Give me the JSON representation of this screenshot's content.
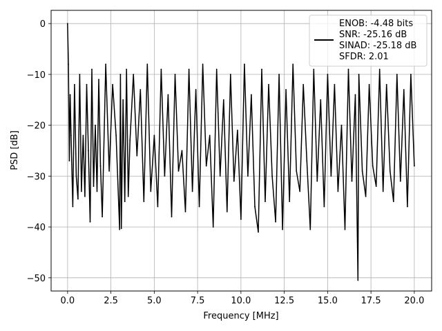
{
  "chart_data": {
    "type": "line",
    "title": "",
    "xlabel": "Frequency [MHz]",
    "ylabel": "PSD [dB]",
    "xlim": [
      -0.95,
      21.0
    ],
    "ylim": [
      -52.6,
      2.6
    ],
    "xticks": [
      0.0,
      2.5,
      5.0,
      7.5,
      10.0,
      12.5,
      15.0,
      17.5,
      20.0
    ],
    "xtick_labels": [
      "0.0",
      "2.5",
      "5.0",
      "7.5",
      "10.0",
      "12.5",
      "15.0",
      "17.5",
      "20.0"
    ],
    "yticks": [
      0,
      -10,
      -20,
      -30,
      -40,
      -50
    ],
    "ytick_labels": [
      "0",
      "−10",
      "−20",
      "−30",
      "−40",
      "−50"
    ],
    "grid": true,
    "legend_position": "upper-right",
    "line_color": "#000000",
    "series": [
      {
        "name": "ENOB: -4.48 bits\nSNR: -25.16 dB\nSINAD: -25.18 dB\nSFDR: 2.01",
        "x": [
          0.0,
          0.05,
          0.1,
          0.15,
          0.2,
          0.3,
          0.4,
          0.5,
          0.6,
          0.7,
          0.8,
          0.9,
          1.0,
          1.1,
          1.2,
          1.3,
          1.4,
          1.5,
          1.6,
          1.7,
          1.8,
          1.9,
          2.0,
          2.2,
          2.4,
          2.6,
          2.8,
          3.0,
          3.05,
          3.1,
          3.2,
          3.3,
          3.4,
          3.5,
          3.6,
          3.8,
          4.0,
          4.2,
          4.4,
          4.6,
          4.8,
          5.0,
          5.2,
          5.4,
          5.6,
          5.8,
          6.0,
          6.2,
          6.4,
          6.6,
          6.8,
          7.0,
          7.2,
          7.4,
          7.6,
          7.8,
          8.0,
          8.2,
          8.4,
          8.6,
          8.8,
          9.0,
          9.2,
          9.4,
          9.6,
          9.8,
          10.0,
          10.2,
          10.4,
          10.6,
          10.8,
          11.0,
          11.2,
          11.4,
          11.6,
          11.8,
          12.0,
          12.2,
          12.4,
          12.6,
          12.8,
          13.0,
          13.2,
          13.4,
          13.6,
          13.8,
          14.0,
          14.2,
          14.4,
          14.6,
          14.8,
          15.0,
          15.2,
          15.4,
          15.6,
          15.8,
          16.0,
          16.2,
          16.4,
          16.6,
          16.75,
          16.8,
          17.0,
          17.2,
          17.4,
          17.6,
          17.8,
          18.0,
          18.2,
          18.4,
          18.6,
          18.8,
          19.0,
          19.2,
          19.4,
          19.6,
          19.8,
          20.0
        ],
        "y": [
          0.0,
          -8.0,
          -27.0,
          -14.0,
          -22.0,
          -36.0,
          -12.0,
          -30.0,
          -34.5,
          -10.0,
          -33.0,
          -22.0,
          -34.0,
          -12.0,
          -25.0,
          -39.0,
          -9.0,
          -32.0,
          -20.0,
          -33.0,
          -11.0,
          -28.0,
          -38.0,
          -8.0,
          -29.0,
          -12.0,
          -22.0,
          -40.5,
          -10.0,
          -40.3,
          -15.0,
          -35.0,
          -9.0,
          -34.0,
          -23.0,
          -10.0,
          -26.0,
          -13.0,
          -35.0,
          -8.0,
          -33.0,
          -22.0,
          -36.0,
          -9.0,
          -30.0,
          -14.0,
          -38.0,
          -10.0,
          -29.0,
          -25.0,
          -37.0,
          -9.0,
          -33.0,
          -13.0,
          -36.0,
          -8.0,
          -28.0,
          -22.0,
          -40.0,
          -9.0,
          -30.0,
          -15.0,
          -37.0,
          -10.0,
          -31.0,
          -21.0,
          -38.5,
          -8.0,
          -30.0,
          -14.0,
          -36.0,
          -41.0,
          -9.0,
          -35.0,
          -12.0,
          -30.0,
          -39.0,
          -10.0,
          -40.5,
          -13.0,
          -35.0,
          -8.0,
          -29.0,
          -33.0,
          -12.0,
          -27.0,
          -40.5,
          -9.0,
          -31.0,
          -15.0,
          -36.0,
          -10.0,
          -30.0,
          -12.0,
          -33.0,
          -20.0,
          -40.5,
          -9.0,
          -31.0,
          -14.0,
          -50.5,
          -10.0,
          -29.0,
          -34.0,
          -12.0,
          -28.0,
          -32.0,
          -9.0,
          -33.0,
          -12.0,
          -29.0,
          -35.0,
          -10.0,
          -31.0,
          -13.0,
          -36.0,
          -10.0,
          -28.0
        ]
      }
    ],
    "legend_lines": [
      "ENOB: -4.48 bits",
      "SNR: -25.16 dB",
      "SINAD: -25.18 dB",
      "SFDR: 2.01"
    ]
  }
}
